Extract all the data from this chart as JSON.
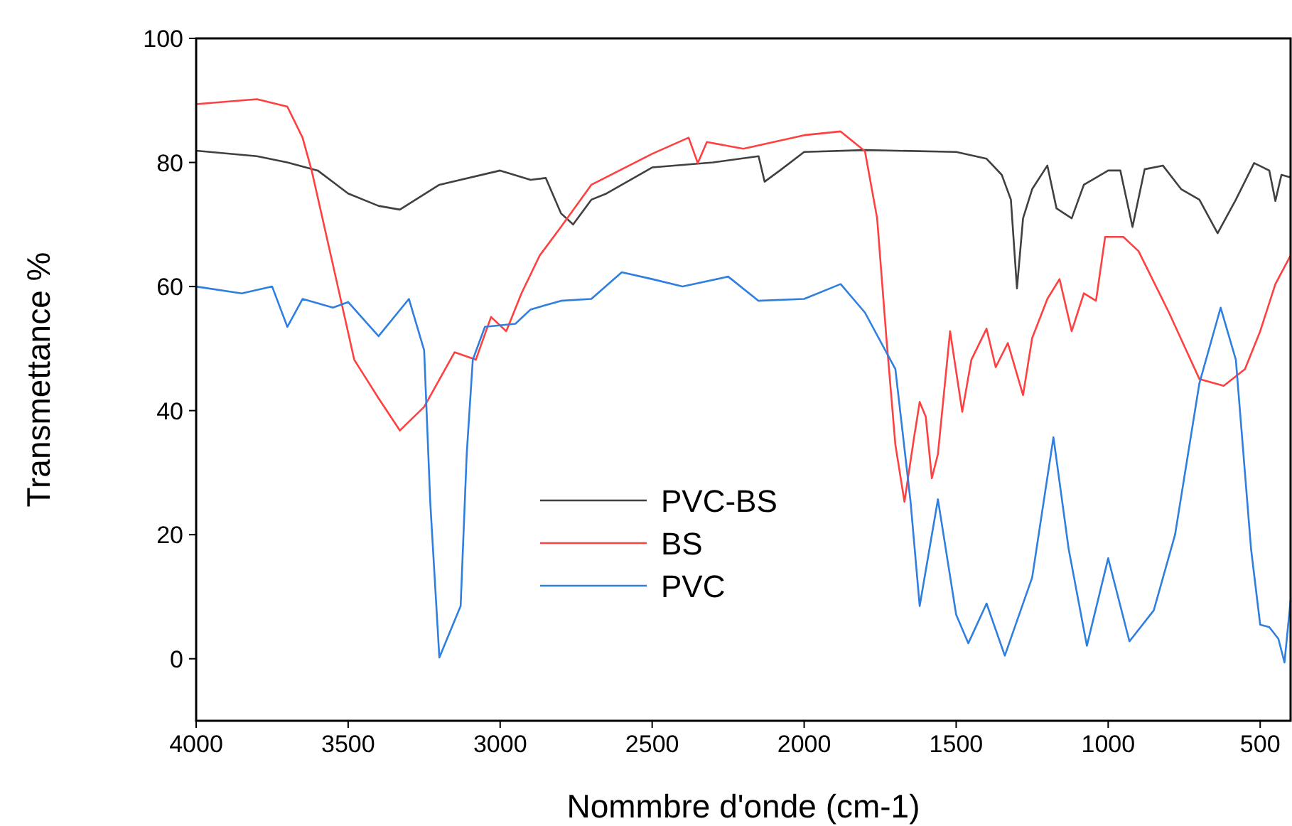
{
  "chart_data": {
    "type": "line",
    "xlabel": "Nommbre d'onde (cm-1)",
    "ylabel": "Transmettance %",
    "xlim": [
      4000,
      400
    ],
    "ylim": [
      -10,
      100
    ],
    "xticks": [
      4000,
      3500,
      3000,
      2500,
      2000,
      1500,
      1000,
      500
    ],
    "yticks": [
      0,
      20,
      40,
      60,
      80,
      100
    ],
    "grid": false,
    "legend": "bottom",
    "marker": "none",
    "line_style": "solid",
    "series": [
      {
        "name": "PVC-BS",
        "color": "#404040",
        "x": [
          4000,
          3800,
          3700,
          3600,
          3500,
          3400,
          3330,
          3200,
          3000,
          2900,
          2850,
          2800,
          2760,
          2700,
          2650,
          2500,
          2300,
          2150,
          2130,
          2080,
          2000,
          1800,
          1500,
          1400,
          1350,
          1320,
          1300,
          1280,
          1250,
          1200,
          1170,
          1120,
          1080,
          1000,
          960,
          920,
          880,
          820,
          760,
          700,
          640,
          580,
          520,
          470,
          450,
          430,
          400
        ],
        "values": [
          81.9,
          81,
          80,
          78.7,
          75,
          73,
          72.4,
          76.4,
          78.7,
          77.2,
          77.5,
          71.8,
          70,
          74,
          75,
          79.2,
          80,
          81,
          76.9,
          78.7,
          81.7,
          82,
          81.7,
          80.6,
          78,
          74,
          59.7,
          71,
          75.7,
          79.5,
          72.6,
          71,
          76.4,
          78.7,
          78.7,
          69.6,
          78.9,
          79.5,
          75.7,
          74,
          68.6,
          74,
          79.9,
          78.7,
          73.8,
          78,
          77.6
        ]
      },
      {
        "name": "BS",
        "color": "#ff4040",
        "x": [
          4000,
          3800,
          3700,
          3650,
          3620,
          3550,
          3480,
          3400,
          3330,
          3250,
          3150,
          3080,
          3030,
          2980,
          2930,
          2870,
          2800,
          2700,
          2500,
          2380,
          2350,
          2320,
          2200,
          2000,
          1880,
          1800,
          1760,
          1730,
          1700,
          1670,
          1640,
          1620,
          1600,
          1580,
          1560,
          1520,
          1480,
          1450,
          1400,
          1370,
          1330,
          1280,
          1250,
          1200,
          1160,
          1120,
          1080,
          1040,
          1010,
          950,
          900,
          800,
          700,
          620,
          550,
          500,
          450,
          400
        ],
        "values": [
          89.4,
          90.2,
          89,
          84,
          78.7,
          63.5,
          48.2,
          42,
          36.8,
          40.6,
          49.4,
          48.2,
          55.1,
          52.8,
          58.9,
          65,
          69.6,
          76.4,
          81.4,
          84,
          79.9,
          83.3,
          82.2,
          84.4,
          85,
          81.8,
          71,
          52,
          34.5,
          25.3,
          35.2,
          41.4,
          39,
          29.1,
          33,
          52.8,
          39.8,
          48.2,
          53.2,
          47,
          50.9,
          42.5,
          51.7,
          58,
          61.2,
          52.8,
          58.9,
          57.7,
          68,
          68,
          65.7,
          55.8,
          45.1,
          44,
          46.7,
          52.8,
          60.4,
          65
        ]
      },
      {
        "name": "PVC",
        "color": "#2f7fe0",
        "x": [
          4000,
          3850,
          3750,
          3700,
          3650,
          3550,
          3500,
          3400,
          3300,
          3250,
          3230,
          3200,
          3130,
          3110,
          3090,
          3050,
          2950,
          2900,
          2800,
          2700,
          2600,
          2500,
          2400,
          2250,
          2150,
          2000,
          1880,
          1800,
          1700,
          1650,
          1620,
          1560,
          1500,
          1460,
          1400,
          1340,
          1250,
          1180,
          1130,
          1070,
          1000,
          930,
          850,
          780,
          700,
          630,
          580,
          530,
          500,
          470,
          440,
          420,
          400
        ],
        "values": [
          60,
          58.9,
          60,
          53.5,
          58,
          56.6,
          57.5,
          52,
          58,
          49.7,
          25.3,
          0.2,
          8.5,
          33,
          48.2,
          53.5,
          54,
          56.3,
          57.7,
          58,
          62.3,
          61.2,
          60,
          61.6,
          57.7,
          58,
          60.4,
          55.8,
          46.7,
          25.3,
          8.5,
          25.7,
          7.1,
          2.5,
          8.9,
          0.5,
          13.1,
          35.7,
          17.7,
          2.1,
          16.2,
          2.8,
          7.8,
          20,
          44.4,
          56.6,
          48.2,
          17.7,
          5.5,
          5.1,
          3.2,
          -0.6,
          9.4
        ]
      }
    ]
  }
}
